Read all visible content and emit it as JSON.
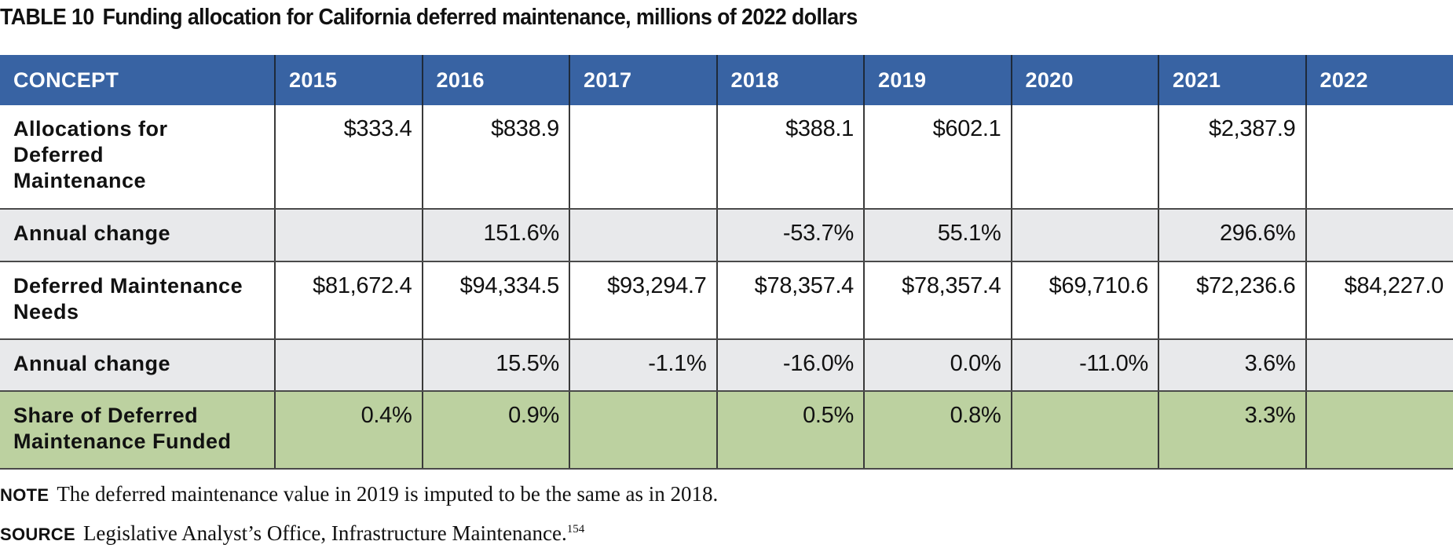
{
  "title": {
    "label": "TABLE 10",
    "text": "Funding allocation for California deferred maintenance, millions of 2022 dollars"
  },
  "table": {
    "headers": [
      "CONCEPT",
      "2015",
      "2016",
      "2017",
      "2018",
      "2019",
      "2020",
      "2021",
      "2022"
    ],
    "rows": [
      {
        "label": "Allocations for Deferred Maintenance",
        "values": [
          "$333.4",
          "$838.9",
          "",
          "$388.1",
          "$602.1",
          "",
          "$2,387.9",
          ""
        ]
      },
      {
        "label": "Annual change",
        "values": [
          "",
          "151.6%",
          "",
          "-53.7%",
          "55.1%",
          "",
          "296.6%",
          ""
        ]
      },
      {
        "label": "Deferred Maintenance Needs",
        "values": [
          "$81,672.4",
          "$94,334.5",
          "$93,294.7",
          "$78,357.4",
          "$78,357.4",
          "$69,710.6",
          "$72,236.6",
          "$84,227.0"
        ]
      },
      {
        "label": "Annual change",
        "values": [
          "",
          "15.5%",
          "-1.1%",
          "-16.0%",
          "0.0%",
          "-11.0%",
          "3.6%",
          ""
        ]
      },
      {
        "label": "Share of Deferred Maintenance Funded",
        "values": [
          "0.4%",
          "0.9%",
          "",
          "0.5%",
          "0.8%",
          "",
          "3.3%",
          ""
        ]
      }
    ]
  },
  "note": {
    "tag": "NOTE",
    "text": "The deferred maintenance value in 2019 is imputed to be the same as in 2018."
  },
  "source": {
    "tag": "SOURCE",
    "text": "Legislative Analyst’s Office, Infrastructure Maintenance.",
    "footnote": "154"
  },
  "colors": {
    "header_bg": "#3863a3",
    "alt_row_bg": "#e8e9eb",
    "highlight_row_bg": "#bcd1a0"
  }
}
